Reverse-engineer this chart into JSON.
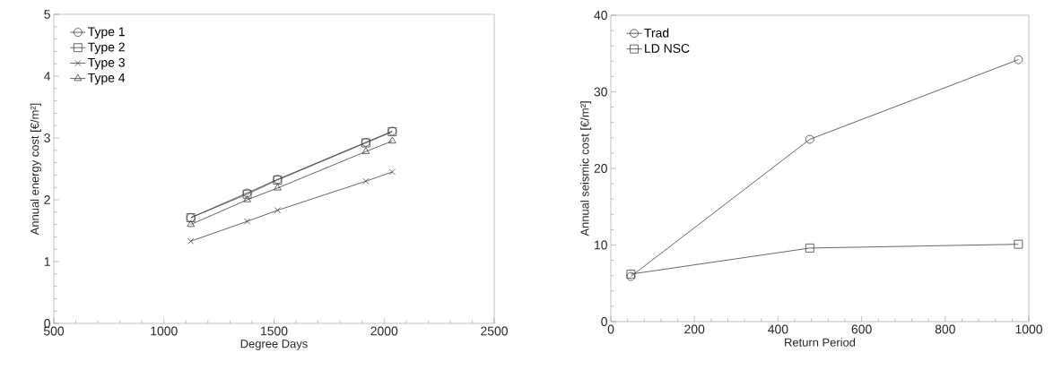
{
  "chart_data": [
    {
      "type": "line",
      "xlabel": "Degree Days",
      "ylabel": "Annual energy cost [€/m²]",
      "xlim": [
        500,
        2500
      ],
      "ylim": [
        0,
        5
      ],
      "xticks": [
        500,
        1000,
        1500,
        2000,
        2500
      ],
      "yticks": [
        0,
        1,
        2,
        3,
        4,
        5
      ],
      "legend": "top left",
      "grid": false,
      "x": [
        1122,
        1378,
        1516,
        1917,
        2037
      ],
      "series": [
        {
          "name": "Type 1",
          "color": "#404040",
          "marker": "circle",
          "values": [
            1.71,
            2.11,
            2.33,
            2.93,
            3.11
          ]
        },
        {
          "name": "Type 2",
          "color": "#404040",
          "marker": "square",
          "values": [
            1.71,
            2.09,
            2.32,
            2.92,
            3.1
          ]
        },
        {
          "name": "Type 3",
          "color": "#404040",
          "marker": "cross",
          "values": [
            1.33,
            1.65,
            1.83,
            2.3,
            2.45
          ]
        },
        {
          "name": "Type 4",
          "color": "#404040",
          "marker": "triangle",
          "values": [
            1.6,
            2.0,
            2.19,
            2.78,
            2.95
          ]
        }
      ]
    },
    {
      "type": "line",
      "xlabel": "Return Period",
      "ylabel": "Annual seismic cost [€/m²]",
      "xlim": [
        0,
        1000
      ],
      "ylim": [
        0,
        40
      ],
      "xticks": [
        0,
        200,
        400,
        600,
        800,
        1000
      ],
      "yticks": [
        0,
        10,
        20,
        30,
        40
      ],
      "legend": "top left",
      "grid": false,
      "x": [
        48,
        476,
        975
      ],
      "series": [
        {
          "name": "Trad",
          "color": "#404040",
          "marker": "circle",
          "values": [
            5.9,
            23.8,
            34.2
          ]
        },
        {
          "name": "LD NSC",
          "color": "#404040",
          "marker": "square",
          "values": [
            6.2,
            9.6,
            10.1
          ]
        }
      ]
    }
  ]
}
